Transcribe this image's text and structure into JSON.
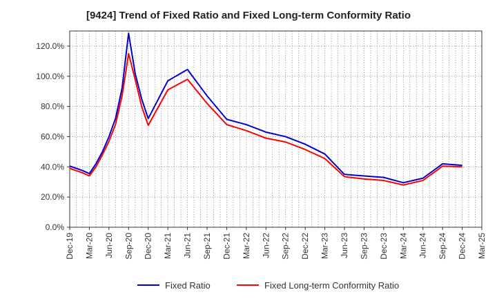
{
  "chart_data": {
    "type": "line",
    "title": "[9424]  Trend of Fixed Ratio and Fixed Long-term Conformity Ratio",
    "xlabel": "",
    "ylabel": "",
    "ylim": [
      0,
      130
    ],
    "y_ticks": [
      0,
      20,
      40,
      60,
      80,
      100,
      120
    ],
    "y_tick_labels": [
      "0.0%",
      "20.0%",
      "40.0%",
      "60.0%",
      "80.0%",
      "100.0%",
      "120.0%"
    ],
    "x_tick_labels": [
      "Dec-19",
      "Mar-20",
      "Jun-20",
      "Sep-20",
      "Dec-20",
      "Mar-21",
      "Jun-21",
      "Sep-21",
      "Dec-21",
      "Mar-22",
      "Jun-22",
      "Sep-22",
      "Dec-22",
      "Mar-23",
      "Jun-23",
      "Sep-23",
      "Dec-23",
      "Mar-24",
      "Jun-24",
      "Sep-24",
      "Dec-24",
      "Mar-25"
    ],
    "x": [
      "Dec-19",
      "Jan-20",
      "Feb-20",
      "Mar-20",
      "Apr-20",
      "May-20",
      "Jun-20",
      "Jul-20",
      "Aug-20",
      "Sep-20",
      "Oct-20",
      "Nov-20",
      "Dec-20",
      "Mar-21",
      "Jun-21",
      "Sep-21",
      "Dec-21",
      "Mar-22",
      "Jun-22",
      "Sep-22",
      "Dec-22",
      "Mar-23",
      "Jun-23",
      "Sep-23",
      "Dec-23",
      "Mar-24",
      "Jun-24",
      "Sep-24",
      "Dec-24"
    ],
    "x_index": [
      0,
      1,
      2,
      3,
      4,
      5,
      6,
      7,
      8,
      9,
      10,
      11,
      12,
      15,
      18,
      21,
      24,
      27,
      30,
      33,
      36,
      39,
      42,
      45,
      48,
      51,
      54,
      57,
      60
    ],
    "grid": true,
    "legend_position": "bottom",
    "series": [
      {
        "name": "Fixed Ratio",
        "color": "#0000cc",
        "values": [
          40.5,
          39.0,
          37.5,
          35.5,
          42.0,
          50.0,
          60.0,
          72.0,
          92.0,
          128.5,
          102.0,
          85.0,
          72.0,
          97.0,
          104.5,
          87.0,
          71.5,
          68.0,
          63.0,
          60.0,
          55.0,
          48.5,
          35.0,
          34.0,
          33.0,
          29.5,
          32.5,
          42.0,
          41.0
        ]
      },
      {
        "name": "Fixed Long-term Conformity Ratio",
        "color": "#ff0000",
        "values": [
          39.0,
          37.5,
          36.0,
          34.0,
          40.0,
          48.0,
          57.0,
          68.0,
          87.0,
          115.0,
          98.0,
          80.0,
          67.5,
          91.0,
          98.0,
          82.0,
          68.0,
          64.0,
          59.0,
          56.5,
          51.5,
          45.5,
          33.5,
          32.0,
          31.0,
          28.0,
          31.0,
          40.5,
          40.0
        ]
      }
    ]
  }
}
